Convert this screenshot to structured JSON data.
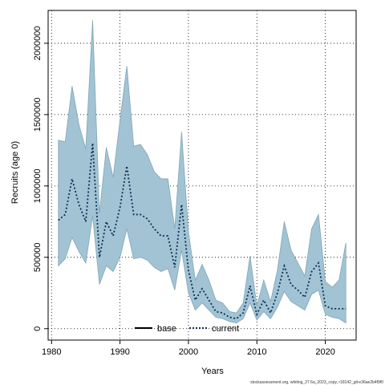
{
  "chart_data": {
    "type": "line",
    "title": "",
    "xlabel": "Years",
    "ylabel": "Recruits (age 0)",
    "xlim": [
      1979.5,
      2024.5
    ],
    "ylim": [
      -80000,
      2230000
    ],
    "xticks": [
      1980,
      1990,
      2000,
      2010,
      2020
    ],
    "xtick_labels": [
      "1980",
      "1990",
      "2000",
      "2010",
      "2020"
    ],
    "yticks": [
      0,
      500000,
      1000000,
      1500000,
      2000000
    ],
    "ytick_labels": [
      "0",
      "500000",
      "1000000",
      "1500000",
      "2000000"
    ],
    "grid": "dotted",
    "legend": {
      "placement": "bottom-center",
      "entries": [
        {
          "label": "base",
          "style": "solid",
          "color": "#000000"
        },
        {
          "label": "current",
          "style": "dotted",
          "color": "#0b2f5a"
        }
      ]
    },
    "band_color": "#a2c3d3",
    "band_edge_color": "#7fa6b8",
    "x": [
      1981,
      1982,
      1983,
      1984,
      1985,
      1986,
      1987,
      1988,
      1989,
      1990,
      1991,
      1992,
      1993,
      1994,
      1995,
      1996,
      1997,
      1998,
      1999,
      2000,
      2001,
      2002,
      2003,
      2004,
      2005,
      2006,
      2007,
      2008,
      2009,
      2010,
      2011,
      2012,
      2013,
      2014,
      2015,
      2016,
      2017,
      2018,
      2019,
      2020,
      2021,
      2022,
      2023
    ],
    "series": [
      {
        "name": "current",
        "style": "dotted",
        "values": [
          760000,
          800000,
          1050000,
          870000,
          750000,
          1300000,
          500000,
          750000,
          650000,
          850000,
          1140000,
          800000,
          800000,
          770000,
          700000,
          650000,
          650000,
          430000,
          870000,
          410000,
          200000,
          280000,
          200000,
          120000,
          110000,
          80000,
          70000,
          110000,
          300000,
          100000,
          200000,
          110000,
          250000,
          440000,
          310000,
          270000,
          220000,
          400000,
          460000,
          160000,
          140000,
          140000,
          140000
        ]
      },
      {
        "name": "base",
        "style": "solid",
        "values": [
          760000,
          800000,
          1050000,
          870000,
          750000,
          1300000,
          500000,
          750000,
          650000,
          850000,
          1140000,
          800000,
          800000,
          770000,
          700000,
          650000,
          650000,
          430000,
          870000,
          410000,
          200000,
          280000,
          200000,
          120000,
          110000,
          80000,
          70000,
          110000,
          300000,
          100000,
          200000,
          110000,
          250000,
          440000,
          310000,
          270000,
          220000,
          400000,
          460000,
          160000,
          140000,
          140000,
          140000
        ]
      }
    ],
    "band_upper": [
      1320000,
      1310000,
      1700000,
      1430000,
      1260000,
      2160000,
      810000,
      1270000,
      1060000,
      1460000,
      1840000,
      1280000,
      1290000,
      1220000,
      1100000,
      1050000,
      1050000,
      700000,
      1380000,
      680000,
      340000,
      450000,
      340000,
      200000,
      180000,
      120000,
      110000,
      180000,
      510000,
      160000,
      340000,
      190000,
      410000,
      750000,
      550000,
      460000,
      370000,
      700000,
      800000,
      330000,
      290000,
      340000,
      600000
    ],
    "band_lower": [
      440000,
      490000,
      640000,
      540000,
      460000,
      790000,
      310000,
      440000,
      400000,
      500000,
      700000,
      490000,
      500000,
      480000,
      430000,
      400000,
      420000,
      270000,
      550000,
      250000,
      130000,
      180000,
      130000,
      80000,
      70000,
      50000,
      40000,
      70000,
      180000,
      60000,
      120000,
      70000,
      150000,
      260000,
      190000,
      160000,
      130000,
      240000,
      270000,
      100000,
      80000,
      70000,
      40000
    ]
  },
  "footnote": "stockassessment.org, whiting_27.6a_2023_copy, r18142_git:e36ae2b4f9f0"
}
